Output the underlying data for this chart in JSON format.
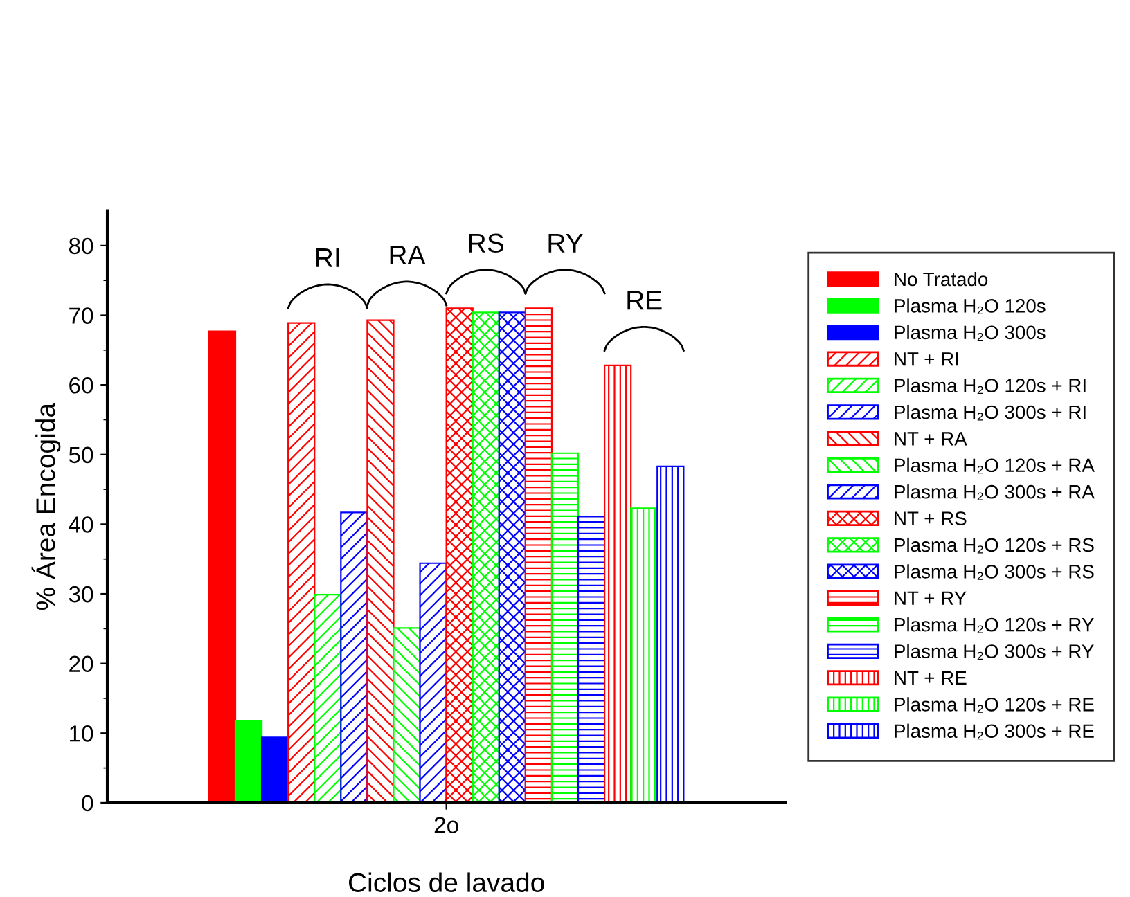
{
  "chart_data": {
    "type": "bar",
    "xlabel": "Ciclos de lavado",
    "ylabel": "% Área Encogida",
    "categories": [
      "2o"
    ],
    "ylim": [
      0,
      85
    ],
    "yticks": [
      0,
      10,
      20,
      30,
      40,
      50,
      60,
      70,
      80
    ],
    "grid": false,
    "legend": "right",
    "annotations": [
      "RI",
      "RA",
      "RS",
      "RY",
      "RE"
    ],
    "series": [
      {
        "name": "No Tratado",
        "color": "#ff0000",
        "values": [
          67.7
        ]
      },
      {
        "name": "Plasma H₂O 120s",
        "color": "#00ff00",
        "values": [
          11.8
        ]
      },
      {
        "name": "Plasma H₂O 300s",
        "color": "#0000ff",
        "values": [
          9.4
        ]
      },
      {
        "name": "NT + RI",
        "color": "#ff0000",
        "values": [
          68.9
        ]
      },
      {
        "name": "Plasma H₂O 120s + RI",
        "color": "#00ff00",
        "values": [
          29.9
        ]
      },
      {
        "name": "Plasma H₂O 300s + RI",
        "color": "#0000ff",
        "values": [
          41.7
        ]
      },
      {
        "name": "NT + RA",
        "color": "#ff0000",
        "values": [
          69.3
        ]
      },
      {
        "name": "Plasma H₂O 120s + RA",
        "color": "#00ff00",
        "values": [
          25.1
        ]
      },
      {
        "name": "Plasma H₂O 300s + RA",
        "color": "#0000ff",
        "values": [
          34.4
        ]
      },
      {
        "name": "NT + RS",
        "color": "#ff0000",
        "values": [
          71.0
        ]
      },
      {
        "name": "Plasma H₂O 120s + RS",
        "color": "#00ff00",
        "values": [
          70.4
        ]
      },
      {
        "name": "Plasma H₂O 300s + RS",
        "color": "#0000ff",
        "values": [
          70.4
        ]
      },
      {
        "name": "NT + RY",
        "color": "#ff0000",
        "values": [
          71.0
        ]
      },
      {
        "name": "Plasma H₂O 120s + RY",
        "color": "#00ff00",
        "values": [
          50.2
        ]
      },
      {
        "name": "Plasma H₂O 300s + RY",
        "color": "#0000ff",
        "values": [
          41.1
        ]
      },
      {
        "name": "NT + RE",
        "color": "#ff0000",
        "values": [
          62.8
        ]
      },
      {
        "name": "Plasma H₂O 120s + RE",
        "color": "#00ff00",
        "values": [
          42.3
        ]
      },
      {
        "name": "Plasma H₂O 300s + RE",
        "color": "#0000ff",
        "values": [
          48.3
        ]
      }
    ]
  }
}
